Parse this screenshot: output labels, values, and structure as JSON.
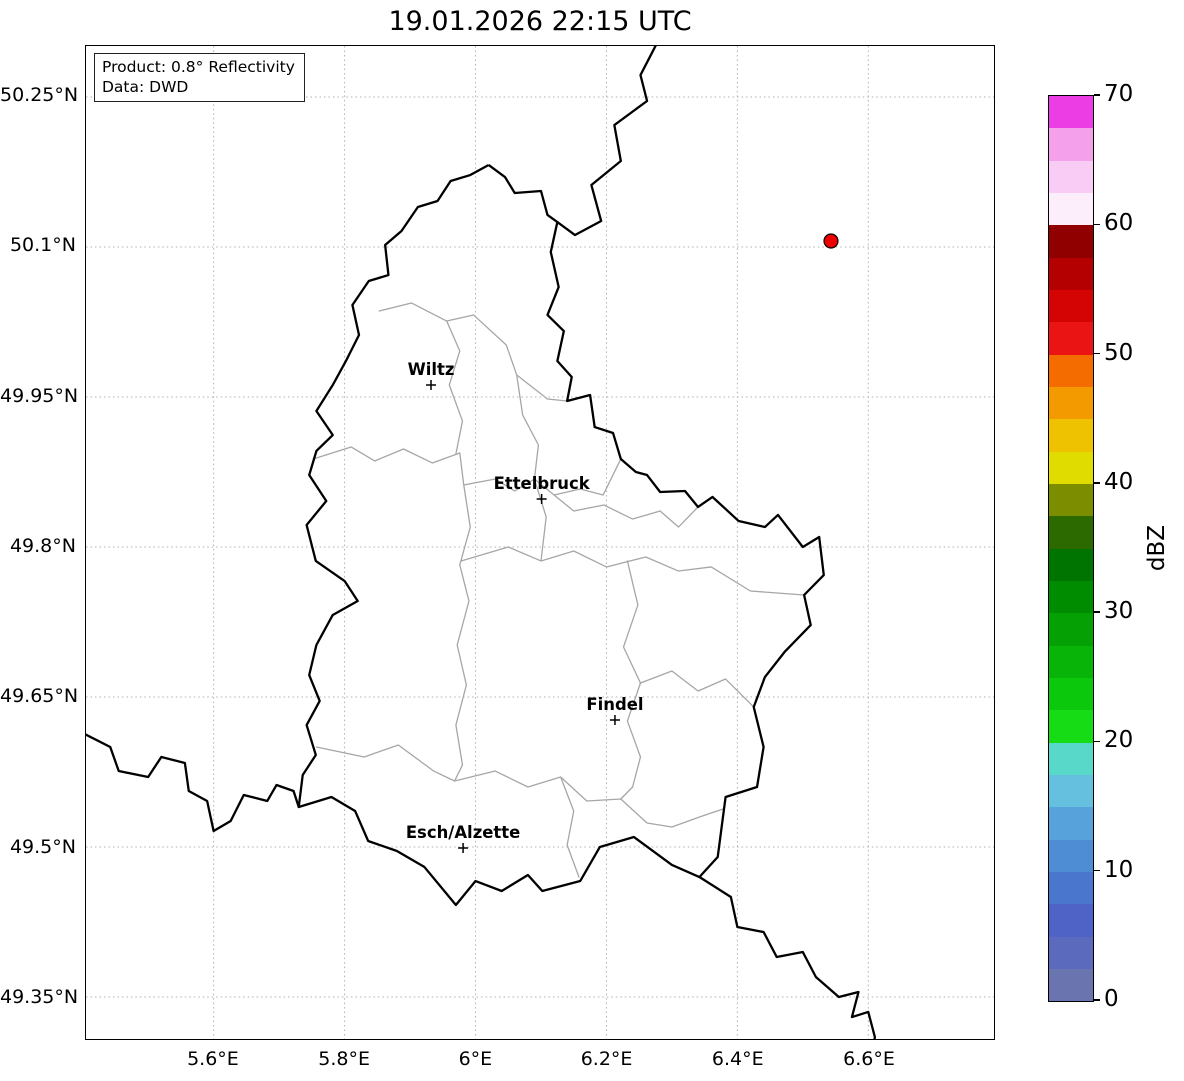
{
  "title": "19.01.2026 22:15 UTC",
  "annotation": {
    "line1": "Product: 0.8° Reflectivity",
    "line2": "Data: DWD"
  },
  "axes": {
    "extent": {
      "lon_min": 5.405,
      "lon_max": 6.792,
      "lat_min": 49.308,
      "lat_max": 50.301
    },
    "lon_ticks": [
      {
        "lon": 5.6,
        "label": "5.6°E"
      },
      {
        "lon": 5.8,
        "label": "5.8°E"
      },
      {
        "lon": 6.0,
        "label": "6°E"
      },
      {
        "lon": 6.2,
        "label": "6.2°E"
      },
      {
        "lon": 6.4,
        "label": "6.4°E"
      },
      {
        "lon": 6.6,
        "label": "6.6°E"
      }
    ],
    "lat_ticks": [
      {
        "lat": 49.35,
        "label": "49.35°N"
      },
      {
        "lat": 49.5,
        "label": "49.5°N"
      },
      {
        "lat": 49.65,
        "label": "49.65°N"
      },
      {
        "lat": 49.8,
        "label": "49.8°N"
      },
      {
        "lat": 49.95,
        "label": "49.95°N"
      },
      {
        "lat": 50.1,
        "label": "50.1°N"
      },
      {
        "lat": 50.25,
        "label": "50.25°N"
      }
    ],
    "grid": "dotted"
  },
  "colorbar": {
    "label": "dBZ",
    "min": 0,
    "max": 70,
    "ticks": [
      {
        "value": 0,
        "label": "0"
      },
      {
        "value": 10,
        "label": "10"
      },
      {
        "value": 20,
        "label": "20"
      },
      {
        "value": 30,
        "label": "30"
      },
      {
        "value": 40,
        "label": "40"
      },
      {
        "value": 50,
        "label": "50"
      },
      {
        "value": 60,
        "label": "60"
      },
      {
        "value": 70,
        "label": "70"
      }
    ],
    "colors_bottom_to_top": [
      "#6a74ae",
      "#5b6abd",
      "#4f63c6",
      "#4a77cd",
      "#4e8cd4",
      "#57a2da",
      "#65c0e0",
      "#57d8c8",
      "#16dc16",
      "#0cc80c",
      "#08b408",
      "#04a004",
      "#008c00",
      "#007400",
      "#2c6a00",
      "#7c8e00",
      "#e0dc00",
      "#eec200",
      "#f29a00",
      "#f46c00",
      "#ea1414",
      "#d40404",
      "#b40000",
      "#900000",
      "#fceefa",
      "#f8ccf4",
      "#f4a0ea",
      "#ec3ce4"
    ]
  },
  "cities": [
    {
      "name": "Wiltz",
      "lon": 5.932,
      "lat": 49.962
    },
    {
      "name": "Ettelbruck",
      "lon": 6.101,
      "lat": 49.848
    },
    {
      "name": "Findel",
      "lon": 6.213,
      "lat": 49.627
    },
    {
      "name": "Esch/Alzette",
      "lon": 5.981,
      "lat": 49.499
    }
  ],
  "radar_site": {
    "lon": 6.543,
    "lat": 50.106,
    "color": "#ee0000"
  },
  "map": {
    "border_color": "#000000",
    "canton_color": "#a6a6a6",
    "grid_color": "#b0b0b0",
    "country_border": [
      [
        6.02,
        50.182
      ],
      [
        6.045,
        50.17
      ],
      [
        6.06,
        50.154
      ],
      [
        6.1,
        50.156
      ],
      [
        6.11,
        50.132
      ],
      [
        6.125,
        50.125
      ],
      [
        6.115,
        50.095
      ],
      [
        6.127,
        50.06
      ],
      [
        6.11,
        50.032
      ],
      [
        6.135,
        50.016
      ],
      [
        6.125,
        49.986
      ],
      [
        6.147,
        49.97
      ],
      [
        6.14,
        49.946
      ],
      [
        6.175,
        49.952
      ],
      [
        6.182,
        49.92
      ],
      [
        6.21,
        49.914
      ],
      [
        6.222,
        49.888
      ],
      [
        6.245,
        49.875
      ],
      [
        6.262,
        49.872
      ],
      [
        6.282,
        49.855
      ],
      [
        6.32,
        49.856
      ],
      [
        6.34,
        49.84
      ],
      [
        6.362,
        49.85
      ],
      [
        6.402,
        49.826
      ],
      [
        6.442,
        49.82
      ],
      [
        6.462,
        49.832
      ],
      [
        6.5,
        49.8
      ],
      [
        6.525,
        49.81
      ],
      [
        6.532,
        49.772
      ],
      [
        6.502,
        49.752
      ],
      [
        6.512,
        49.722
      ],
      [
        6.472,
        49.695
      ],
      [
        6.442,
        49.67
      ],
      [
        6.425,
        49.64
      ],
      [
        6.44,
        49.6
      ],
      [
        6.43,
        49.56
      ],
      [
        6.382,
        49.55
      ],
      [
        6.37,
        49.49
      ],
      [
        6.342,
        49.47
      ],
      [
        6.3,
        49.482
      ],
      [
        6.242,
        49.51
      ],
      [
        6.19,
        49.5
      ],
      [
        6.16,
        49.466
      ],
      [
        6.102,
        49.456
      ],
      [
        6.08,
        49.472
      ],
      [
        6.04,
        49.456
      ],
      [
        6.0,
        49.466
      ],
      [
        5.97,
        49.442
      ],
      [
        5.922,
        49.48
      ],
      [
        5.88,
        49.496
      ],
      [
        5.836,
        49.506
      ],
      [
        5.816,
        49.536
      ],
      [
        5.78,
        49.55
      ],
      [
        5.73,
        49.54
      ],
      [
        5.736,
        49.572
      ],
      [
        5.756,
        49.592
      ],
      [
        5.742,
        49.622
      ],
      [
        5.762,
        49.646
      ],
      [
        5.746,
        49.672
      ],
      [
        5.757,
        49.702
      ],
      [
        5.782,
        49.732
      ],
      [
        5.82,
        49.746
      ],
      [
        5.8,
        49.766
      ],
      [
        5.756,
        49.786
      ],
      [
        5.742,
        49.822
      ],
      [
        5.772,
        49.846
      ],
      [
        5.746,
        49.872
      ],
      [
        5.757,
        49.896
      ],
      [
        5.782,
        49.912
      ],
      [
        5.757,
        49.936
      ],
      [
        5.782,
        49.962
      ],
      [
        5.802,
        49.986
      ],
      [
        5.822,
        50.012
      ],
      [
        5.812,
        50.042
      ],
      [
        5.837,
        50.066
      ],
      [
        5.867,
        50.072
      ],
      [
        5.862,
        50.102
      ],
      [
        5.887,
        50.116
      ],
      [
        5.912,
        50.14
      ],
      [
        5.942,
        50.146
      ],
      [
        5.962,
        50.166
      ],
      [
        5.992,
        50.172
      ],
      [
        6.02,
        50.182
      ]
    ],
    "neighbor_borders": [
      [
        [
          6.282,
          50.31
        ],
        [
          6.252,
          50.272
        ],
        [
          6.262,
          50.246
        ],
        [
          6.212,
          50.222
        ],
        [
          6.222,
          50.186
        ],
        [
          6.177,
          50.162
        ],
        [
          6.192,
          50.126
        ],
        [
          6.152,
          50.112
        ],
        [
          6.125,
          50.125
        ]
      ],
      [
        [
          6.342,
          49.47
        ],
        [
          6.39,
          49.45
        ],
        [
          6.4,
          49.42
        ],
        [
          6.44,
          49.415
        ],
        [
          6.46,
          49.39
        ],
        [
          6.5,
          49.395
        ],
        [
          6.52,
          49.37
        ],
        [
          6.555,
          49.35
        ],
        [
          6.585,
          49.355
        ],
        [
          6.575,
          49.33
        ],
        [
          6.6,
          49.335
        ],
        [
          6.61,
          49.31
        ],
        [
          6.605,
          49.29
        ]
      ],
      [
        [
          5.4,
          49.614
        ],
        [
          5.442,
          49.6
        ],
        [
          5.455,
          49.576
        ],
        [
          5.5,
          49.57
        ],
        [
          5.52,
          49.59
        ],
        [
          5.556,
          49.584
        ],
        [
          5.562,
          49.556
        ],
        [
          5.59,
          49.546
        ],
        [
          5.6,
          49.516
        ],
        [
          5.626,
          49.526
        ],
        [
          5.646,
          49.552
        ],
        [
          5.682,
          49.546
        ],
        [
          5.696,
          49.562
        ],
        [
          5.722,
          49.556
        ],
        [
          5.73,
          49.54
        ]
      ]
    ],
    "canton_borders": [
      [
        [
          5.853,
          50.036
        ],
        [
          5.902,
          50.044
        ],
        [
          5.956,
          50.026
        ],
        [
          5.997,
          50.032
        ],
        [
          6.047,
          50.002
        ],
        [
          6.063,
          49.972
        ],
        [
          6.11,
          49.948
        ],
        [
          6.14,
          49.946
        ]
      ],
      [
        [
          6.063,
          49.972
        ],
        [
          6.072,
          49.932
        ],
        [
          6.096,
          49.902
        ],
        [
          6.09,
          49.868
        ],
        [
          6.12,
          49.852
        ],
        [
          6.16,
          49.858
        ],
        [
          6.195,
          49.852
        ],
        [
          6.222,
          49.888
        ]
      ],
      [
        [
          5.752,
          49.888
        ],
        [
          5.81,
          49.9
        ],
        [
          5.846,
          49.886
        ],
        [
          5.89,
          49.898
        ],
        [
          5.934,
          49.884
        ],
        [
          5.976,
          49.894
        ],
        [
          5.982,
          49.862
        ],
        [
          6.03,
          49.868
        ],
        [
          6.06,
          49.856
        ],
        [
          6.09,
          49.868
        ]
      ],
      [
        [
          6.12,
          49.852
        ],
        [
          6.15,
          49.836
        ],
        [
          6.196,
          49.842
        ],
        [
          6.24,
          49.828
        ],
        [
          6.282,
          49.836
        ],
        [
          6.31,
          49.82
        ],
        [
          6.34,
          49.84
        ]
      ],
      [
        [
          5.956,
          50.026
        ],
        [
          5.976,
          49.996
        ],
        [
          5.96,
          49.962
        ],
        [
          5.98,
          49.926
        ],
        [
          5.97,
          49.893
        ]
      ],
      [
        [
          5.982,
          49.862
        ],
        [
          5.992,
          49.82
        ],
        [
          5.976,
          49.782
        ],
        [
          5.99,
          49.746
        ],
        [
          5.972,
          49.702
        ],
        [
          5.986,
          49.662
        ],
        [
          5.97,
          49.622
        ],
        [
          5.98,
          49.582
        ],
        [
          5.968,
          49.566
        ]
      ],
      [
        [
          5.978,
          49.786
        ],
        [
          6.05,
          49.8
        ],
        [
          6.1,
          49.786
        ],
        [
          6.15,
          49.796
        ],
        [
          6.2,
          49.78
        ],
        [
          6.26,
          49.79
        ],
        [
          6.31,
          49.776
        ],
        [
          6.36,
          49.78
        ],
        [
          6.42,
          49.756
        ],
        [
          6.502,
          49.752
        ]
      ],
      [
        [
          6.232,
          49.786
        ],
        [
          6.248,
          49.742
        ],
        [
          6.226,
          49.7
        ],
        [
          6.252,
          49.664
        ],
        [
          6.232,
          49.626
        ],
        [
          6.252,
          49.59
        ],
        [
          6.24,
          49.56
        ],
        [
          6.222,
          49.548
        ]
      ],
      [
        [
          5.757,
          49.6
        ],
        [
          5.83,
          49.59
        ],
        [
          5.882,
          49.602
        ],
        [
          5.936,
          49.576
        ],
        [
          5.968,
          49.566
        ],
        [
          6.03,
          49.576
        ],
        [
          6.08,
          49.56
        ],
        [
          6.13,
          49.57
        ],
        [
          6.17,
          49.546
        ],
        [
          6.222,
          49.548
        ],
        [
          6.262,
          49.524
        ],
        [
          6.3,
          49.52
        ],
        [
          6.342,
          49.53
        ],
        [
          6.378,
          49.538
        ]
      ],
      [
        [
          6.252,
          49.664
        ],
        [
          6.3,
          49.676
        ],
        [
          6.34,
          49.656
        ],
        [
          6.382,
          49.668
        ],
        [
          6.425,
          49.64
        ]
      ],
      [
        [
          6.09,
          49.868
        ],
        [
          6.108,
          49.83
        ],
        [
          6.1,
          49.786
        ]
      ],
      [
        [
          6.13,
          49.57
        ],
        [
          6.15,
          49.536
        ],
        [
          6.14,
          49.502
        ],
        [
          6.158,
          49.47
        ]
      ]
    ]
  }
}
